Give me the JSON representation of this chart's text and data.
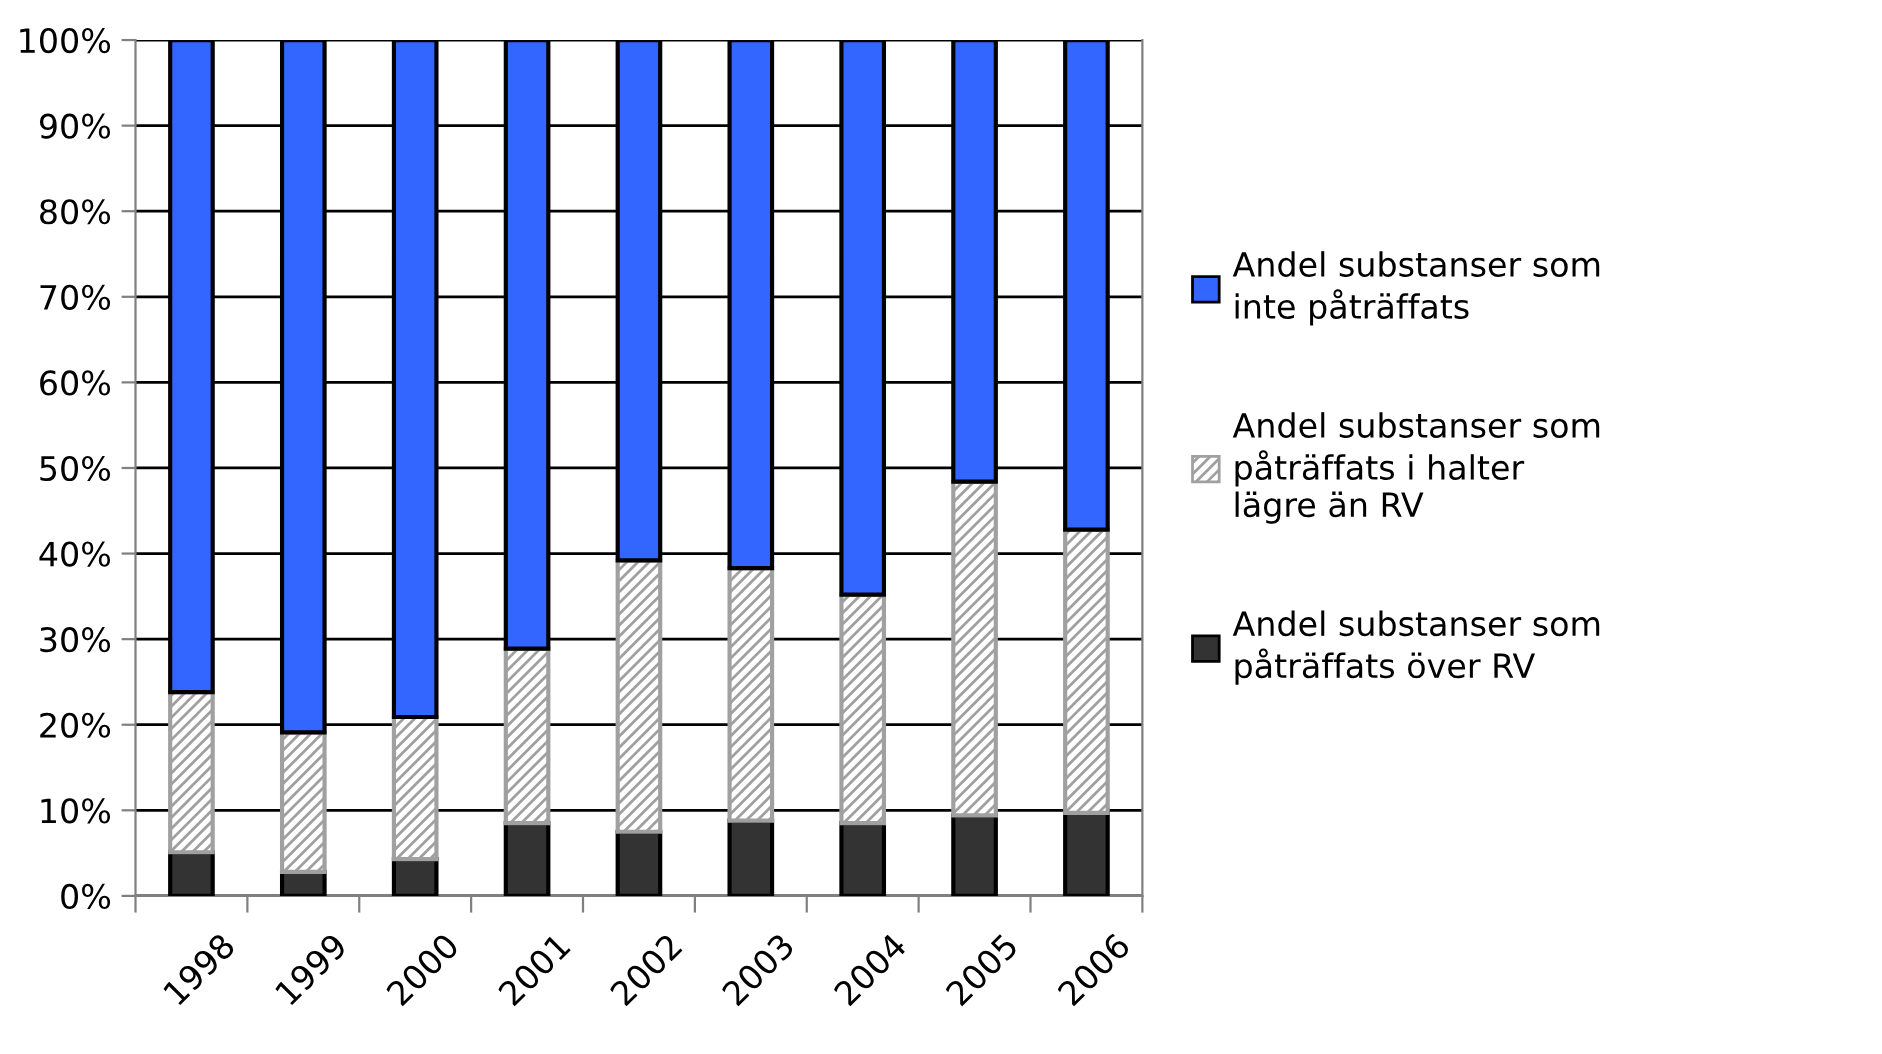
{
  "chart_data": {
    "type": "bar",
    "stacked": true,
    "categories": [
      "1998",
      "1999",
      "2000",
      "2001",
      "2002",
      "2003",
      "2004",
      "2005",
      "2006"
    ],
    "series": [
      {
        "name": "Andel substanser som påträffats över RV",
        "color": "#333333",
        "values": [
          5.1,
          2.8,
          4.3,
          8.5,
          7.5,
          8.8,
          8.5,
          9.4,
          9.7
        ]
      },
      {
        "name": "Andel substanser som påträffats i halter lägre än RV",
        "color": "#a0a0a0",
        "values": [
          18.7,
          16.3,
          16.6,
          20.4,
          31.7,
          29.5,
          26.7,
          39.0,
          33.1
        ]
      },
      {
        "name": "Andel substanser som inte påträffats",
        "color": "#3366ff",
        "values": [
          76.2,
          80.9,
          79.1,
          71.1,
          60.8,
          61.7,
          64.8,
          51.6,
          57.2
        ]
      }
    ],
    "ylim": [
      0,
      100
    ],
    "yticks": [
      {
        "value": 0,
        "label": "0%"
      },
      {
        "value": 10,
        "label": "10%"
      },
      {
        "value": 20,
        "label": "20%"
      },
      {
        "value": 30,
        "label": "30%"
      },
      {
        "value": 40,
        "label": "40%"
      },
      {
        "value": 50,
        "label": "50%"
      },
      {
        "value": 60,
        "label": "60%"
      },
      {
        "value": 70,
        "label": "70%"
      },
      {
        "value": 80,
        "label": "80%"
      },
      {
        "value": 90,
        "label": "90%"
      },
      {
        "value": 100,
        "label": "100%"
      }
    ],
    "grid": "y",
    "legend": "right"
  }
}
